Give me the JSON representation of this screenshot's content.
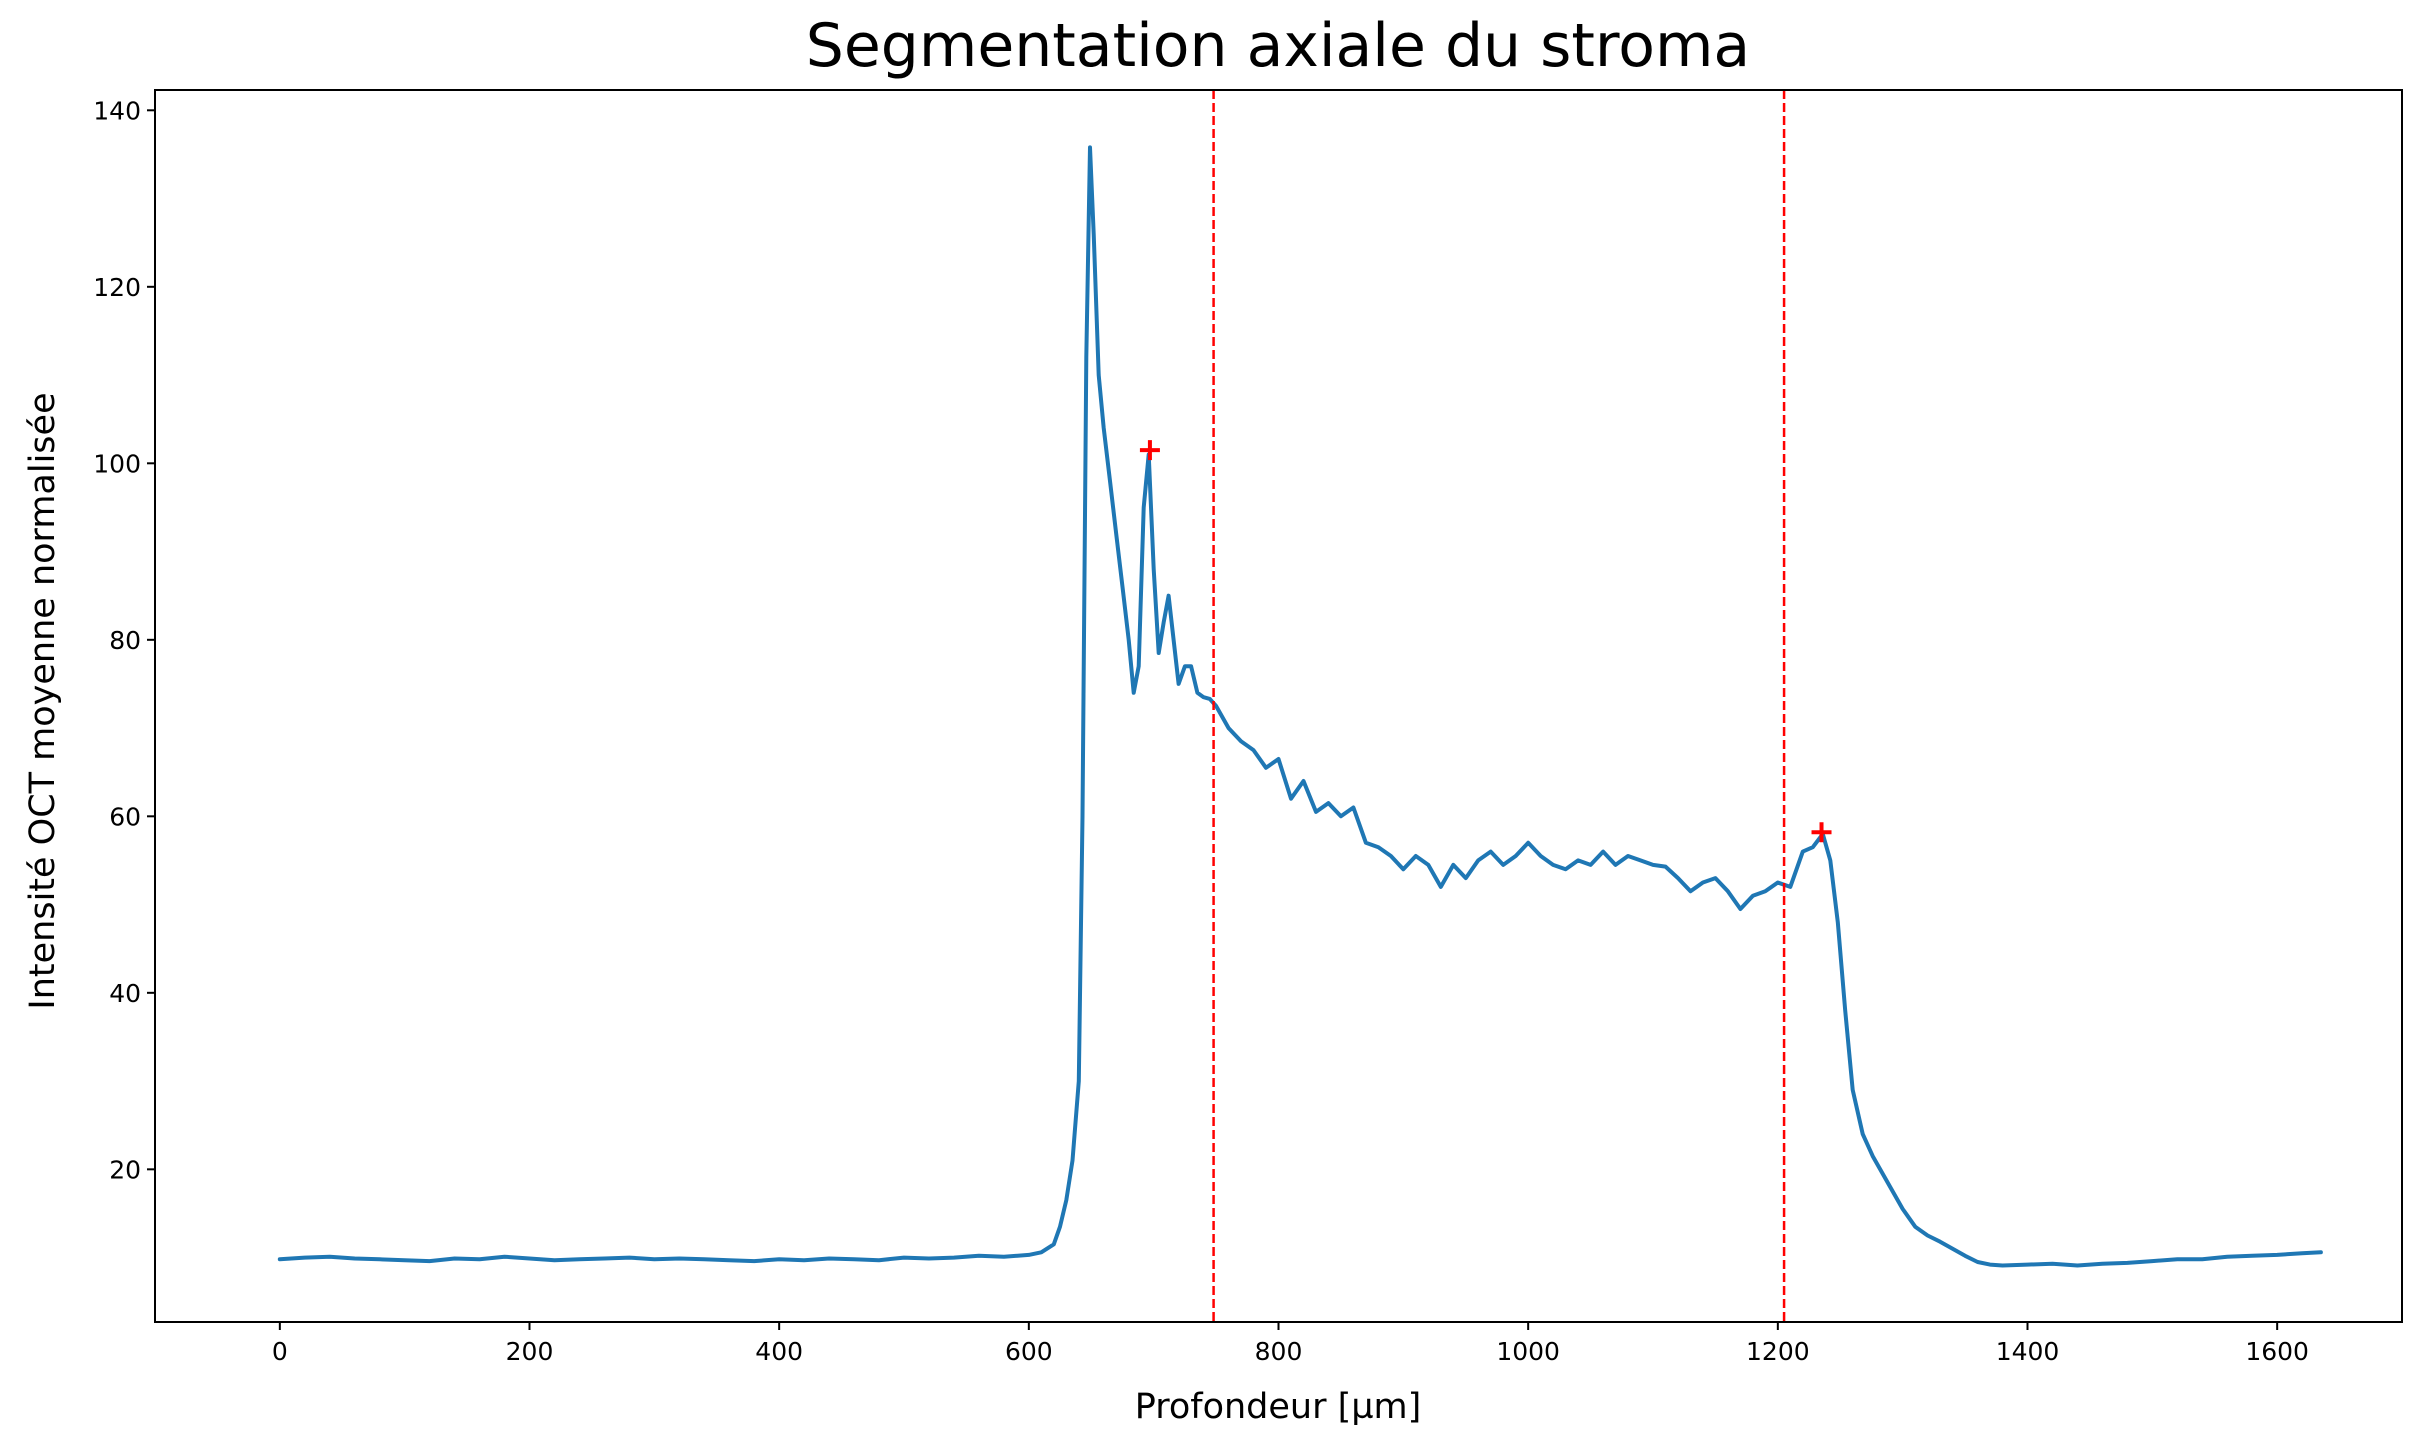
{
  "chart_data": {
    "type": "line",
    "title": "Segmentation axiale du stroma",
    "xlabel": "Profondeur [µm]",
    "ylabel": "Intensité OCT moyenne normalisée",
    "xlim": [
      -100,
      1700
    ],
    "ylim": [
      2.7,
      142.3
    ],
    "x_ticks": [
      0,
      200,
      400,
      600,
      800,
      1000,
      1200,
      1400,
      1600
    ],
    "y_ticks": [
      20,
      40,
      60,
      80,
      100,
      120,
      140
    ],
    "grid": false,
    "legend": "none",
    "series": [
      {
        "color": "#1f77b4",
        "points": [
          [
            0,
            9.8
          ],
          [
            20,
            10.0
          ],
          [
            40,
            10.1
          ],
          [
            60,
            9.9
          ],
          [
            80,
            9.8
          ],
          [
            100,
            9.7
          ],
          [
            120,
            9.6
          ],
          [
            140,
            9.9
          ],
          [
            160,
            9.8
          ],
          [
            180,
            10.1
          ],
          [
            200,
            9.9
          ],
          [
            220,
            9.7
          ],
          [
            240,
            9.8
          ],
          [
            260,
            9.9
          ],
          [
            280,
            10.0
          ],
          [
            300,
            9.8
          ],
          [
            320,
            9.9
          ],
          [
            340,
            9.8
          ],
          [
            360,
            9.7
          ],
          [
            380,
            9.6
          ],
          [
            400,
            9.8
          ],
          [
            420,
            9.7
          ],
          [
            440,
            9.9
          ],
          [
            460,
            9.8
          ],
          [
            480,
            9.7
          ],
          [
            500,
            10.0
          ],
          [
            520,
            9.9
          ],
          [
            540,
            10.0
          ],
          [
            560,
            10.2
          ],
          [
            580,
            10.1
          ],
          [
            600,
            10.3
          ],
          [
            610,
            10.6
          ],
          [
            620,
            11.5
          ],
          [
            625,
            13.5
          ],
          [
            630,
            16.5
          ],
          [
            635,
            21.0
          ],
          [
            640,
            30.0
          ],
          [
            643,
            60.0
          ],
          [
            646,
            112.0
          ],
          [
            649,
            135.8
          ],
          [
            652,
            126.0
          ],
          [
            656,
            110.0
          ],
          [
            660,
            104.0
          ],
          [
            665,
            98.0
          ],
          [
            670,
            92.0
          ],
          [
            675,
            86.0
          ],
          [
            680,
            80.0
          ],
          [
            684,
            74.0
          ],
          [
            688,
            77.0
          ],
          [
            692,
            95.0
          ],
          [
            696,
            101.0
          ],
          [
            700,
            88.0
          ],
          [
            704,
            78.5
          ],
          [
            708,
            82.0
          ],
          [
            712,
            85.0
          ],
          [
            716,
            80.0
          ],
          [
            720,
            75.0
          ],
          [
            725,
            77.0
          ],
          [
            730,
            77.0
          ],
          [
            735,
            74.0
          ],
          [
            740,
            73.5
          ],
          [
            745,
            73.3
          ],
          [
            750,
            72.5
          ],
          [
            760,
            70.0
          ],
          [
            770,
            68.5
          ],
          [
            780,
            67.5
          ],
          [
            790,
            65.5
          ],
          [
            800,
            66.5
          ],
          [
            810,
            62.0
          ],
          [
            820,
            64.0
          ],
          [
            830,
            60.5
          ],
          [
            840,
            61.5
          ],
          [
            850,
            60.0
          ],
          [
            860,
            61.0
          ],
          [
            870,
            57.0
          ],
          [
            880,
            56.5
          ],
          [
            890,
            55.5
          ],
          [
            900,
            54.0
          ],
          [
            910,
            55.5
          ],
          [
            920,
            54.5
          ],
          [
            930,
            52.0
          ],
          [
            940,
            54.5
          ],
          [
            950,
            53.0
          ],
          [
            960,
            55.0
          ],
          [
            970,
            56.0
          ],
          [
            980,
            54.5
          ],
          [
            990,
            55.5
          ],
          [
            1000,
            57.0
          ],
          [
            1010,
            55.5
          ],
          [
            1020,
            54.5
          ],
          [
            1030,
            54.0
          ],
          [
            1040,
            55.0
          ],
          [
            1050,
            54.5
          ],
          [
            1060,
            56.0
          ],
          [
            1070,
            54.5
          ],
          [
            1080,
            55.5
          ],
          [
            1090,
            55.0
          ],
          [
            1100,
            54.5
          ],
          [
            1110,
            54.3
          ],
          [
            1120,
            53.0
          ],
          [
            1130,
            51.5
          ],
          [
            1140,
            52.5
          ],
          [
            1150,
            53.0
          ],
          [
            1160,
            51.5
          ],
          [
            1170,
            49.5
          ],
          [
            1180,
            51.0
          ],
          [
            1190,
            51.5
          ],
          [
            1200,
            52.5
          ],
          [
            1210,
            52.0
          ],
          [
            1220,
            56.0
          ],
          [
            1228,
            56.5
          ],
          [
            1236,
            58.0
          ],
          [
            1242,
            55.0
          ],
          [
            1248,
            48.0
          ],
          [
            1254,
            38.0
          ],
          [
            1260,
            29.0
          ],
          [
            1268,
            24.0
          ],
          [
            1276,
            21.5
          ],
          [
            1290,
            18.0
          ],
          [
            1300,
            15.5
          ],
          [
            1310,
            13.5
          ],
          [
            1320,
            12.5
          ],
          [
            1330,
            11.8
          ],
          [
            1340,
            11.0
          ],
          [
            1350,
            10.2
          ],
          [
            1360,
            9.5
          ],
          [
            1370,
            9.2
          ],
          [
            1380,
            9.1
          ],
          [
            1400,
            9.2
          ],
          [
            1420,
            9.3
          ],
          [
            1440,
            9.1
          ],
          [
            1460,
            9.3
          ],
          [
            1480,
            9.4
          ],
          [
            1500,
            9.6
          ],
          [
            1520,
            9.8
          ],
          [
            1540,
            9.8
          ],
          [
            1560,
            10.1
          ],
          [
            1580,
            10.2
          ],
          [
            1600,
            10.3
          ],
          [
            1620,
            10.5
          ],
          [
            1635,
            10.6
          ]
        ]
      }
    ],
    "peaks": [
      [
        697,
        101.5
      ],
      [
        1235,
        58.2
      ]
    ],
    "vlines": [
      748,
      1205
    ]
  }
}
